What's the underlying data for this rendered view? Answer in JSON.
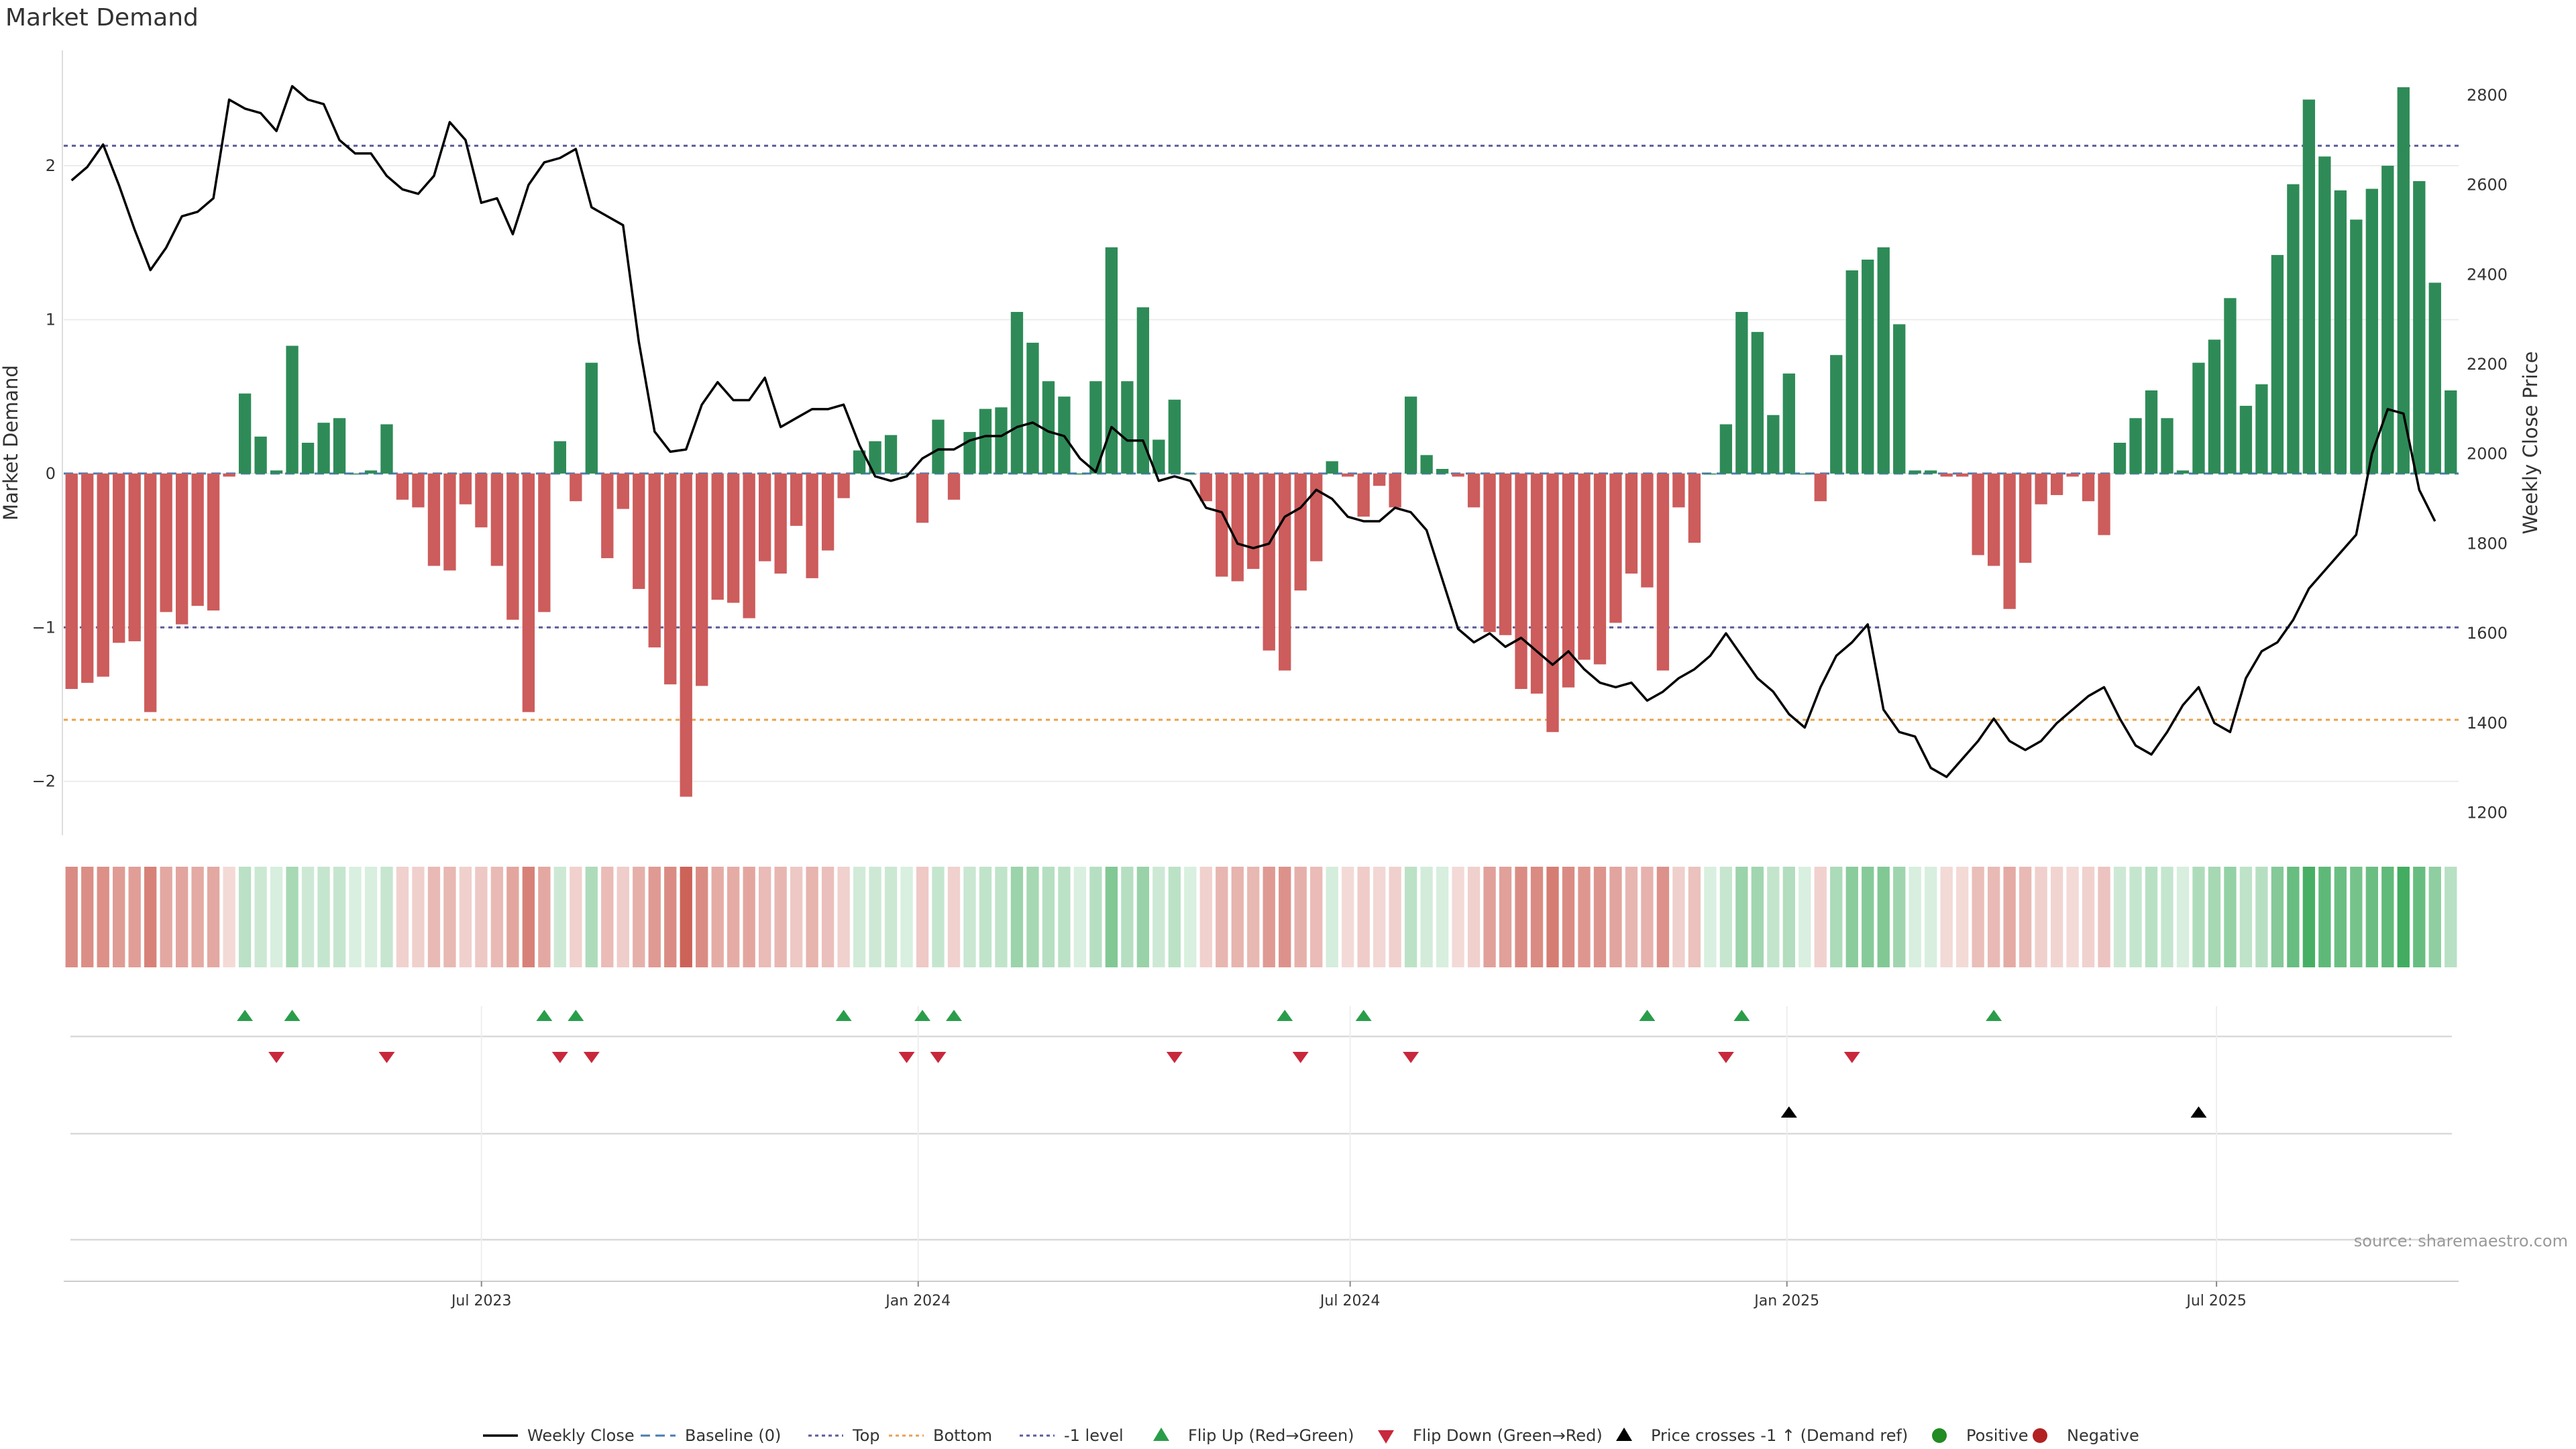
{
  "chart_data": {
    "type": "bar",
    "title": "Market Demand",
    "ylabel_left": "Market Demand",
    "ylabel_right": "Weekly Close Price",
    "ylim_left": [
      -2.35,
      2.75
    ],
    "ylim_right": [
      1150,
      2900
    ],
    "yticks_left": [
      "−2",
      "−1",
      "0",
      "1",
      "2"
    ],
    "yticks_left_values": [
      -2,
      -1,
      0,
      1,
      2
    ],
    "yticks_right": [
      "1200",
      "1400",
      "1600",
      "1800",
      "2000",
      "2200",
      "2400",
      "2600",
      "2800"
    ],
    "yticks_right_values": [
      1200,
      1400,
      1600,
      1800,
      2000,
      2200,
      2400,
      2600,
      2800
    ],
    "x_start": "2023-01-06",
    "x_end": "2025-10-11",
    "xticks": [
      {
        "date": "2023-07-01",
        "label": "Jul 2023"
      },
      {
        "date": "2024-01-01",
        "label": "Jan 2024"
      },
      {
        "date": "2024-07-01",
        "label": "Jul 2024"
      },
      {
        "date": "2025-01-01",
        "label": "Jan 2025"
      },
      {
        "date": "2025-07-01",
        "label": "Jul 2025"
      }
    ],
    "reference_lines": {
      "top": 2.13,
      "bottom": -1.6,
      "minus_one": -1.0,
      "baseline": 0
    },
    "colors": {
      "positive": "#2e8b57",
      "negative": "#cd5c5c",
      "price": "#000000",
      "top": "#5a5a9a",
      "bottom": "#e8a04e",
      "flip_up": "#2a9d4a",
      "flip_down": "#c8283c",
      "cross": "#000000",
      "dot_positive": "#228b22",
      "dot_negative": "#b22222"
    },
    "series": [
      {
        "name": "Market Demand",
        "values": [
          -1.4,
          -1.36,
          -1.32,
          -1.1,
          -1.09,
          -1.55,
          -0.9,
          -0.98,
          -0.86,
          -0.89,
          -0.02,
          0.52,
          0.24,
          0.02,
          0.83,
          0.2,
          0.33,
          0.36,
          0.0,
          0.02,
          0.32,
          -0.17,
          -0.22,
          -0.6,
          -0.63,
          -0.2,
          -0.35,
          -0.6,
          -0.95,
          -1.55,
          -0.9,
          0.21,
          -0.18,
          0.72,
          -0.55,
          -0.23,
          -0.75,
          -1.13,
          -1.37,
          -2.1,
          -1.38,
          -0.82,
          -0.84,
          -0.94,
          -0.57,
          -0.65,
          -0.34,
          -0.68,
          -0.5,
          -0.16,
          0.15,
          0.21,
          0.25,
          0.0,
          -0.32,
          0.35,
          -0.17,
          0.27,
          0.42,
          0.43,
          1.05,
          0.85,
          0.6,
          0.5,
          0.0,
          0.6,
          1.47,
          0.6,
          1.08,
          0.22,
          0.48,
          0.0,
          -0.18,
          -0.67,
          -0.7,
          -0.62,
          -1.15,
          -1.28,
          -0.76,
          -0.57,
          0.08,
          -0.02,
          -0.28,
          -0.08,
          -0.22,
          0.5,
          0.12,
          0.03,
          -0.02,
          -0.22,
          -1.03,
          -1.05,
          -1.4,
          -1.43,
          -1.68,
          -1.39,
          -1.21,
          -1.24,
          -0.97,
          -0.65,
          -0.74,
          -1.28,
          -0.22,
          -0.45,
          0.0,
          0.32,
          1.05,
          0.92,
          0.38,
          0.65,
          0.0,
          -0.18,
          0.77,
          1.32,
          1.39,
          1.47,
          0.97,
          0.02,
          0.02,
          -0.02,
          -0.02,
          -0.53,
          -0.6,
          -0.88,
          -0.58,
          -0.2,
          -0.14,
          -0.02,
          -0.18,
          -0.4,
          0.2,
          0.36,
          0.54,
          0.36,
          0.02,
          0.72,
          0.87,
          1.14,
          0.44,
          0.58,
          1.42,
          1.88,
          2.43,
          2.06,
          1.84,
          1.65,
          1.85,
          2.0,
          2.51,
          1.9,
          1.24,
          0.54
        ]
      },
      {
        "name": "Weekly Close",
        "values": [
          2610,
          2640,
          2690,
          2600,
          2500,
          2410,
          2460,
          2530,
          2540,
          2570,
          2790,
          2770,
          2760,
          2720,
          2820,
          2790,
          2780,
          2700,
          2670,
          2670,
          2620,
          2590,
          2580,
          2620,
          2740,
          2700,
          2560,
          2570,
          2490,
          2600,
          2650,
          2660,
          2680,
          2550,
          2530,
          2510,
          2250,
          2050,
          2005,
          2010,
          2110,
          2160,
          2120,
          2120,
          2170,
          2060,
          2080,
          2100,
          2100,
          2110,
          2020,
          1950,
          1940,
          1950,
          1990,
          2010,
          2010,
          2030,
          2040,
          2040,
          2060,
          2070,
          2050,
          2040,
          1990,
          1960,
          2060,
          2030,
          2030,
          1940,
          1950,
          1940,
          1880,
          1870,
          1800,
          1790,
          1800,
          1860,
          1880,
          1920,
          1900,
          1860,
          1850,
          1850,
          1880,
          1870,
          1830,
          1720,
          1610,
          1580,
          1600,
          1570,
          1590,
          1560,
          1530,
          1560,
          1520,
          1490,
          1480,
          1490,
          1450,
          1470,
          1500,
          1520,
          1550,
          1600,
          1550,
          1500,
          1470,
          1420,
          1390,
          1480,
          1550,
          1580,
          1620,
          1430,
          1380,
          1370,
          1300,
          1280,
          1320,
          1360,
          1410,
          1360,
          1340,
          1360,
          1400,
          1430,
          1460,
          1480,
          1410,
          1350,
          1330,
          1380,
          1440,
          1480,
          1400,
          1380,
          1500,
          1560,
          1580,
          1630,
          1700,
          1740,
          1780,
          1820,
          2000,
          2100,
          2090,
          1920,
          1850
        ]
      }
    ],
    "flip_up_indices": [
      11,
      14,
      30,
      32,
      49,
      54,
      56,
      77,
      82,
      100,
      106,
      122
    ],
    "flip_down_indices": [
      13,
      20,
      31,
      33,
      53,
      55,
      70,
      78,
      85,
      105,
      113
    ],
    "cross_indices": [
      109,
      135
    ],
    "legend": [
      "Weekly Close",
      "Baseline (0)",
      "Top",
      "Bottom",
      "-1 level",
      "Flip Up (Red→Green)",
      "Flip Down (Green→Red)",
      "Price crosses -1 ↑ (Demand ref)",
      "Positive",
      "Negative"
    ],
    "source": "source: sharemaestro.com"
  }
}
